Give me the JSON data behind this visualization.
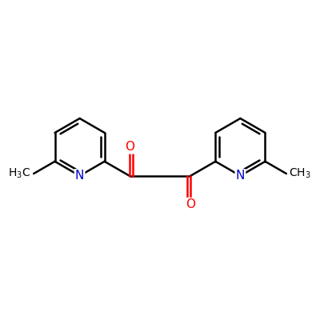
{
  "bg_color": "#ffffff",
  "bond_color": "#000000",
  "nitrogen_color": "#0000cc",
  "oxygen_color": "#ff0000",
  "line_width": 1.8,
  "font_size": 11,
  "figsize": [
    4.0,
    4.0
  ],
  "dpi": 100,
  "xlim": [
    -5.5,
    5.5
  ],
  "ylim": [
    -4.0,
    5.5
  ]
}
